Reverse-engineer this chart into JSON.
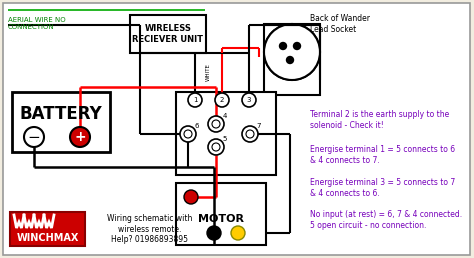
{
  "bg_color": "#f2ede0",
  "aerial_text": "AERIAL WIRE NO\nCONNECTION",
  "aerial_color": "#008000",
  "wireless_text": "WIRELESS\nRECIEVER UNIT",
  "battery_text": "BATTERY",
  "motor_text": "MOTOR",
  "wander_text": "Back of Wander\nLead Socket",
  "white_text": "WHITE",
  "winchmax_text": "WINCHMAX",
  "schematic_text": "Wiring schematic with\nwireless remote.\nHelp? 01986893895",
  "notes": [
    "Terminal 2 is the earth supply to the\nsolenoid - Check it!",
    "Energise terminal 1 = 5 connects to 6\n& 4 connects to 7.",
    "Energise terminal 3 = 5 connects to 7\n& 4 connects to 6.",
    "No input (at rest) = 6, 7 & 4 connected.\n5 open circuit - no connection."
  ],
  "notes_color": "#7700bb",
  "winchmax_bg": "#cc0000",
  "winchmax_text_color": "#ffffff"
}
